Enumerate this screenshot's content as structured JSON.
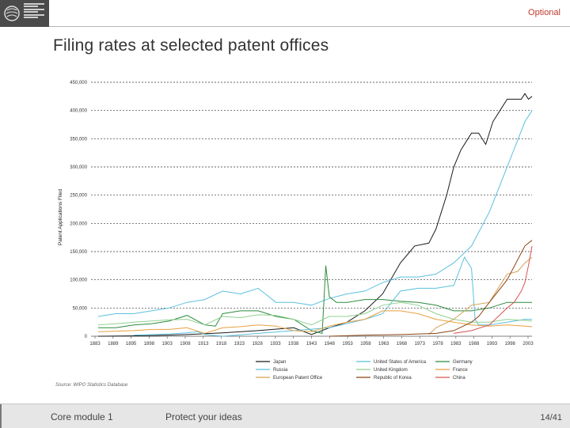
{
  "header": {
    "optional_label": "Optional"
  },
  "slide": {
    "title": "Filing rates at selected patent offices"
  },
  "footer": {
    "module": "Core module 1",
    "slogan": "Protect your ideas",
    "page": "14/41"
  },
  "chart_data": {
    "type": "line",
    "title": "Filing rates at selected patent offices",
    "xlabel": "",
    "ylabel": "Patent Applications Filed",
    "xlim": [
      1883,
      2007
    ],
    "ylim": [
      0,
      450000
    ],
    "y_ticks": [
      0,
      50000,
      100000,
      150000,
      200000,
      250000,
      300000,
      350000,
      400000,
      450000
    ],
    "y_tick_labels": [
      "0",
      "50,000",
      "100,000",
      "150,000",
      "200,000",
      "250,000",
      "300,000",
      "350,000",
      "400,000",
      "450,000"
    ],
    "x_tick_labels": [
      "1883",
      "1889",
      "1895",
      "1898",
      "1903",
      "1908",
      "1913",
      "1918",
      "1923",
      "1928",
      "1933",
      "1938",
      "1943",
      "1948",
      "1953",
      "1958",
      "1963",
      "1968",
      "1973",
      "1978",
      "1983",
      "1988",
      "1993",
      "1998",
      "2003"
    ],
    "grid": "horizontal-dashed",
    "legend_position": "bottom",
    "source": "Source: WIPO Statistics Database",
    "series": [
      {
        "name": "Japan",
        "color": "#1a1a1a",
        "x": [
          1885,
          1900,
          1910,
          1920,
          1930,
          1940,
          1945,
          1950,
          1955,
          1960,
          1965,
          1970,
          1974,
          1978,
          1980,
          1983,
          1985,
          1987,
          1989,
          1990,
          1992,
          1994,
          1996,
          1998,
          2000,
          2002,
          2004,
          2005,
          2006,
          2007
        ],
        "y": [
          0,
          1000,
          3000,
          6000,
          10000,
          15000,
          3000,
          15000,
          25000,
          45000,
          75000,
          130000,
          160000,
          165000,
          190000,
          250000,
          300000,
          330000,
          350000,
          360000,
          360000,
          340000,
          380000,
          400000,
          420000,
          420000,
          420000,
          430000,
          420000,
          425000
        ]
      },
      {
        "name": "United States of America",
        "color": "#5bc0de",
        "x": [
          1885,
          1890,
          1895,
          1900,
          1905,
          1910,
          1915,
          1920,
          1925,
          1930,
          1935,
          1940,
          1945,
          1950,
          1955,
          1960,
          1965,
          1970,
          1975,
          1980,
          1985,
          1990,
          1995,
          2000,
          2005,
          2007
        ],
        "y": [
          35000,
          40000,
          40000,
          45000,
          50000,
          60000,
          65000,
          80000,
          75000,
          85000,
          60000,
          60000,
          55000,
          67000,
          75000,
          80000,
          95000,
          105000,
          105000,
          110000,
          130000,
          160000,
          220000,
          300000,
          380000,
          400000
        ]
      },
      {
        "name": "Germany",
        "color": "#2e8b3e",
        "x": [
          1885,
          1890,
          1895,
          1900,
          1905,
          1910,
          1915,
          1918,
          1920,
          1925,
          1930,
          1935,
          1940,
          1945,
          1948,
          1949,
          1950,
          1952,
          1955,
          1960,
          1965,
          1970,
          1975,
          1980,
          1985,
          1990,
          1995,
          2000,
          2005,
          2007
        ],
        "y": [
          15000,
          15000,
          20000,
          22000,
          27000,
          37000,
          20000,
          18000,
          40000,
          45000,
          45000,
          35000,
          30000,
          10000,
          5000,
          125000,
          70000,
          60000,
          60000,
          65000,
          65000,
          62000,
          60000,
          55000,
          45000,
          45000,
          50000,
          60000,
          60000,
          60000
        ]
      },
      {
        "name": "Russia",
        "color": "#5bc0de",
        "x": [
          1895,
          1900,
          1905,
          1910,
          1913,
          1915,
          1920,
          1930,
          1940,
          1950,
          1960,
          1965,
          1970,
          1975,
          1980,
          1985,
          1988,
          1990,
          1991,
          1992,
          1995,
          2000,
          2005,
          2007
        ],
        "y": [
          2000,
          3000,
          4000,
          6000,
          8000,
          3000,
          0,
          5000,
          10000,
          15000,
          30000,
          40000,
          80000,
          85000,
          85000,
          90000,
          140000,
          120000,
          30000,
          20000,
          20000,
          25000,
          30000,
          30000
        ]
      },
      {
        "name": "United Kingdom",
        "color": "#90d090",
        "x": [
          1885,
          1890,
          1895,
          1900,
          1905,
          1910,
          1915,
          1920,
          1925,
          1930,
          1935,
          1940,
          1945,
          1950,
          1955,
          1960,
          1965,
          1970,
          1975,
          1980,
          1985,
          1990,
          1995,
          2000,
          2005,
          2007
        ],
        "y": [
          20000,
          22000,
          25000,
          27000,
          29000,
          30000,
          20000,
          35000,
          33000,
          38000,
          37000,
          30000,
          20000,
          35000,
          35000,
          40000,
          55000,
          60000,
          55000,
          40000,
          30000,
          25000,
          25000,
          30000,
          28000,
          27000
        ]
      },
      {
        "name": "France",
        "color": "#e8a040",
        "x": [
          1885,
          1890,
          1895,
          1900,
          1905,
          1910,
          1915,
          1920,
          1925,
          1930,
          1935,
          1940,
          1945,
          1950,
          1955,
          1960,
          1965,
          1970,
          1975,
          1980,
          1985,
          1990,
          1995,
          2000,
          2005,
          2007
        ],
        "y": [
          8000,
          9000,
          10000,
          12000,
          12000,
          15000,
          5000,
          15000,
          17000,
          20000,
          18000,
          10000,
          8000,
          18000,
          25000,
          30000,
          45000,
          45000,
          40000,
          30000,
          25000,
          20000,
          18000,
          20000,
          18000,
          17000
        ]
      },
      {
        "name": "European Patent Office",
        "color": "#d4a050",
        "x": [
          1978,
          1980,
          1985,
          1990,
          1995,
          2000,
          2003,
          2005,
          2007
        ],
        "y": [
          3000,
          15000,
          30000,
          55000,
          60000,
          110000,
          115000,
          130000,
          140000
        ]
      },
      {
        "name": "Republic of Korea",
        "color": "#8b4513",
        "x": [
          1950,
          1960,
          1970,
          1975,
          1980,
          1985,
          1990,
          1992,
          1995,
          2000,
          2005,
          2007
        ],
        "y": [
          0,
          2000,
          3000,
          4000,
          5000,
          10000,
          25000,
          35000,
          60000,
          100000,
          160000,
          170000
        ]
      },
      {
        "name": "China",
        "color": "#d9534f",
        "x": [
          1985,
          1990,
          1995,
          2000,
          2002,
          2004,
          2005,
          2006,
          2007
        ],
        "y": [
          5000,
          10000,
          20000,
          50000,
          60000,
          80000,
          95000,
          125000,
          160000
        ]
      }
    ]
  }
}
